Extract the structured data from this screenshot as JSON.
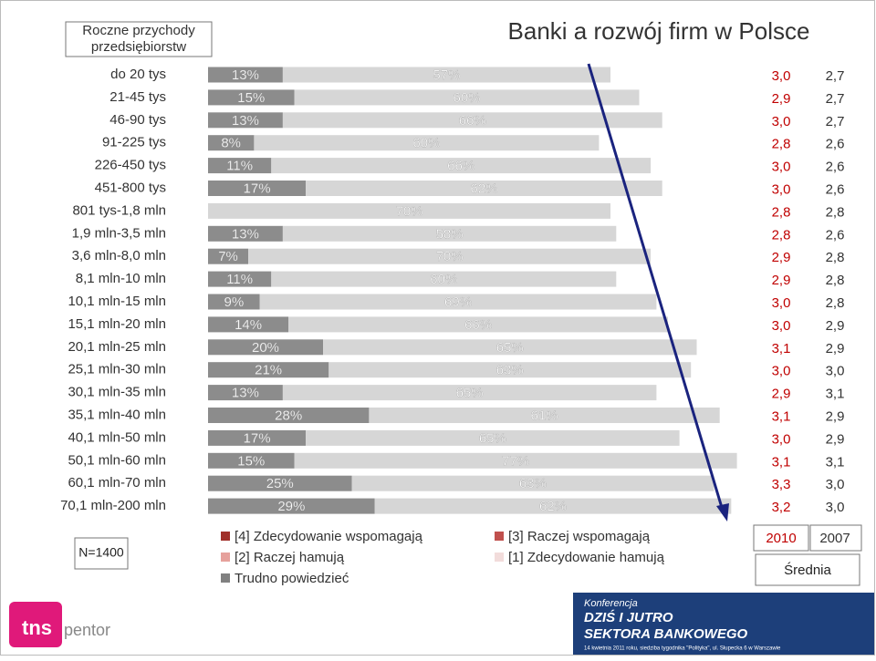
{
  "chart_data": {
    "type": "stacked-bar",
    "title": "Banki a rozwój firm w Polsce",
    "category_header": "Roczne przychody przedsiębiorstw",
    "categories": [
      "do 20 tys",
      "21-45 tys",
      "46-90 tys",
      "91-225 tys",
      "226-450 tys",
      "451-800 tys",
      "801 tys-1,8 mln",
      "1,9 mln-3,5 mln",
      "3,6 mln-8,0 mln",
      "8,1 mln-10 mln",
      "10,1 mln-15 mln",
      "15,1 mln-20 mln",
      "20,1 mln-25 mln",
      "25,1 mln-30 mln",
      "30,1 mln-35 mln",
      "35,1 mln-40 mln",
      "40,1 mln-50 mln",
      "50,1 mln-60 mln",
      "60,1 mln-70 mln",
      "70,1 mln-200 mln"
    ],
    "series": [
      {
        "color": "#8c8c8c",
        "values": [
          13,
          15,
          13,
          8,
          11,
          17,
          null,
          13,
          7,
          11,
          9,
          14,
          20,
          21,
          13,
          28,
          17,
          15,
          25,
          29
        ],
        "value_labels": [
          "13%",
          "15%",
          "13%",
          "8%",
          "11%",
          "17%",
          null,
          "13%",
          "7%",
          "11%",
          "9%",
          "14%",
          "20%",
          "21%",
          "13%",
          "28%",
          "17%",
          "15%",
          "25%",
          "29%"
        ]
      },
      {
        "color": "#d6d6d6",
        "values": [
          57,
          60,
          66,
          60,
          66,
          62,
          70,
          58,
          70,
          60,
          69,
          66,
          65,
          63,
          65,
          61,
          65,
          77,
          63,
          62
        ],
        "value_labels": [
          "57%",
          "60%",
          "66%",
          "60%",
          "66%",
          "62%",
          "70%",
          "58%",
          "70%",
          "60%",
          "69%",
          "66%",
          "65%",
          "63%",
          "65%",
          "61%",
          "65%",
          "77%",
          "63%",
          "62%"
        ]
      }
    ],
    "legend": [
      {
        "name": "[4] Zdecydowanie wspomagają",
        "color": "#a0302a"
      },
      {
        "name": "[3] Raczej wspomagają",
        "color": "#c0504d"
      },
      {
        "name": "[2] Raczej hamują",
        "color": "#e6a19c"
      },
      {
        "name": "[1] Zdecydowanie hamują",
        "color": "#f2dcdb"
      },
      {
        "name": "Trudno powiedzieć",
        "color": "#808080"
      }
    ],
    "score_columns": [
      {
        "header": "2010",
        "color": "#c00000",
        "values": [
          "3,0",
          "2,9",
          "3,0",
          "2,8",
          "3,0",
          "3,0",
          "2,8",
          "2,8",
          "2,9",
          "2,9",
          "3,0",
          "3,0",
          "3,1",
          "3,0",
          "2,9",
          "3,1",
          "3,0",
          "3,1",
          "3,3",
          "3,2"
        ]
      },
      {
        "header": "2007",
        "color": "#333333",
        "values": [
          "2,7",
          "2,7",
          "2,7",
          "2,6",
          "2,6",
          "2,6",
          "2,8",
          "2,6",
          "2,8",
          "2,8",
          "2,8",
          "2,9",
          "2,9",
          "3,0",
          "3,1",
          "2,9",
          "2,9",
          "3,1",
          "3,0",
          "3,0"
        ]
      }
    ],
    "score_caption": "Średnia",
    "sample": "N=1400"
  },
  "footer": {
    "logo": "tns",
    "logo_sub": "pentor",
    "banner_kicker": "Konferencja",
    "banner_title_1": "DZIŚ I JUTRO",
    "banner_title_2": "SEKTORA BANKOWEGO",
    "banner_note": "14 kwietnia 2011 roku, siedziba tygodnika \"Polityka\", ul. Słupecka 6 w Warszawie"
  }
}
